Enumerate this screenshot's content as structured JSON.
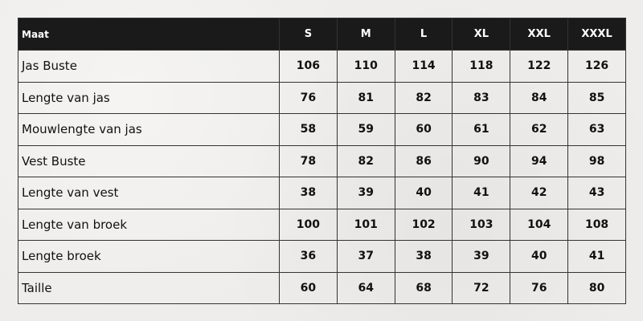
{
  "table": {
    "header": [
      "Maat",
      "S",
      "M",
      "L",
      "XL",
      "XXL",
      "XXXL"
    ],
    "rows": [
      [
        "Jas Buste",
        "106",
        "110",
        "114",
        "118",
        "122",
        "126"
      ],
      [
        "Lengte van jas",
        "76",
        "81",
        "82",
        "83",
        "84",
        "85"
      ],
      [
        "Mouwlengte van jas",
        "58",
        "59",
        "60",
        "61",
        "62",
        "63"
      ],
      [
        "Vest Buste",
        "78",
        "82",
        "86",
        "90",
        "94",
        "98"
      ],
      [
        "Lengte van vest",
        "38",
        "39",
        "40",
        "41",
        "42",
        "43"
      ],
      [
        "Lengte van broek",
        "100",
        "101",
        "102",
        "103",
        "104",
        "108"
      ],
      [
        "Lengte broek",
        "36",
        "37",
        "38",
        "39",
        "40",
        "41"
      ],
      [
        "Taille",
        "60",
        "64",
        "68",
        "72",
        "76",
        "80"
      ]
    ]
  }
}
